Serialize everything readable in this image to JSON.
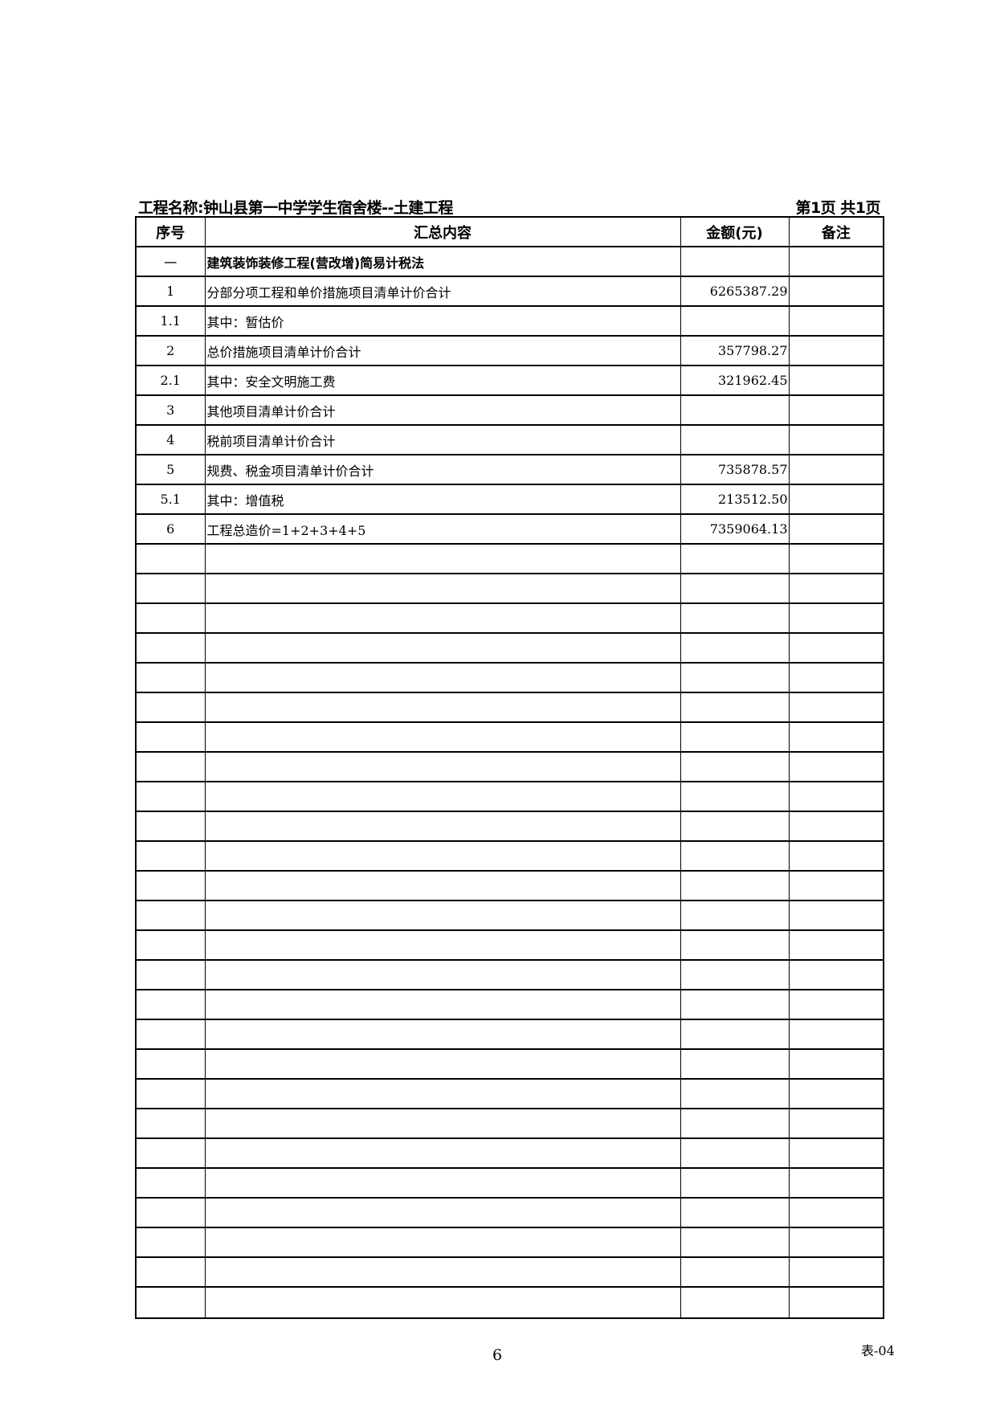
{
  "header": {
    "project": "工程名称:钟山县第一中学学生宿舍楼--土建工程",
    "page_info": "第1页  共1页"
  },
  "table": {
    "columns": [
      "序号",
      "汇总内容",
      "金额(元)",
      "备注"
    ],
    "rows": [
      {
        "no": "一",
        "content": "建筑装饰装修工程(营改增)简易计税法",
        "amount": "",
        "note": "",
        "bold": true
      },
      {
        "no": "1",
        "content": "分部分项工程和单价措施项目清单计价合计",
        "amount": "6265387.29",
        "note": ""
      },
      {
        "no": "1.1",
        "content": "其中：暂估价",
        "amount": "",
        "note": ""
      },
      {
        "no": "2",
        "content": "总价措施项目清单计价合计",
        "amount": "357798.27",
        "note": ""
      },
      {
        "no": "2.1",
        "content": "其中：安全文明施工费",
        "amount": "321962.45",
        "note": ""
      },
      {
        "no": "3",
        "content": "其他项目清单计价合计",
        "amount": "",
        "note": ""
      },
      {
        "no": "4",
        "content": "税前项目清单计价合计",
        "amount": "",
        "note": ""
      },
      {
        "no": "5",
        "content": "规费、税金项目清单计价合计",
        "amount": "735878.57",
        "note": ""
      },
      {
        "no": "5.1",
        "content": "其中：增值税",
        "amount": "213512.50",
        "note": ""
      },
      {
        "no": "6",
        "content": "工程总造价=1+2+3+4+5",
        "amount": "7359064.13",
        "note": ""
      }
    ],
    "empty_rows": 26
  },
  "footer": {
    "page_number": "6",
    "form_code": "表-04"
  }
}
